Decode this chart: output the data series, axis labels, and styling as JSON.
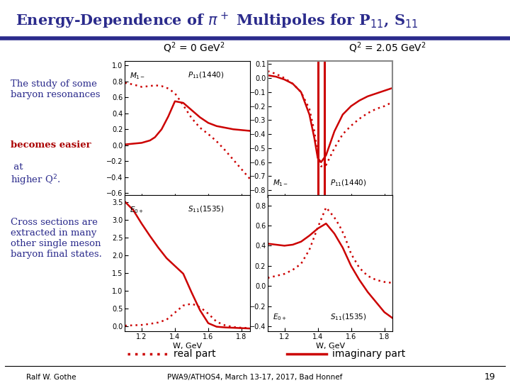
{
  "title": "Energy-Dependence of $\\pi^+$ Multipoles for P$_{11}$, S$_{11}$",
  "title_color": "#2B2B8C",
  "bg_color": "#FFFFFF",
  "subtitle_left": "Q$^2$ = 0 GeV$^2$",
  "subtitle_right": "Q$^2$ = 2.05 GeV$^2$",
  "footer_left": "Ralf W. Gothe",
  "footer_right": "PWA9/ATHOS4, March 13-17, 2017, Bad Honnef",
  "footer_page": "19",
  "curve_color": "#CC0000",
  "text1_normal": "The study of some\nbaryon resonances\n",
  "text1_red": "becomes easier",
  "text1_end": " at\nhigher Q$^2$.",
  "text2": "Cross sections are\nextracted in many\nother single meson\nbaryon final states.",
  "text_color": "#2B2B8C",
  "text_red_color": "#AA0000",
  "legend_real": "real part",
  "legend_imag": "imaginary part",
  "plots": [
    {
      "label_left": "$M_{1-}$",
      "label_right": "$P_{11}(1440)$",
      "label_pos": "top",
      "xlabel": "",
      "xlim": [
        1.1,
        1.85
      ],
      "ylim": [
        -0.65,
        1.05
      ],
      "yticks": [
        1.0,
        0.8,
        0.6,
        0.4,
        0.2,
        0.0,
        -0.2,
        -0.4,
        -0.6
      ],
      "xticks": [
        1.2,
        1.4,
        1.6,
        1.8
      ],
      "real_x": [
        1.1,
        1.15,
        1.2,
        1.25,
        1.28,
        1.32,
        1.36,
        1.4,
        1.45,
        1.5,
        1.55,
        1.6,
        1.65,
        1.7,
        1.75,
        1.8,
        1.85
      ],
      "real_y": [
        0.78,
        0.76,
        0.73,
        0.74,
        0.75,
        0.74,
        0.71,
        0.65,
        0.5,
        0.34,
        0.22,
        0.14,
        0.05,
        -0.06,
        -0.18,
        -0.3,
        -0.42
      ],
      "imag_x": [
        1.1,
        1.15,
        1.2,
        1.25,
        1.28,
        1.32,
        1.36,
        1.4,
        1.45,
        1.5,
        1.55,
        1.6,
        1.65,
        1.7,
        1.75,
        1.8,
        1.85
      ],
      "imag_y": [
        0.01,
        0.02,
        0.03,
        0.06,
        0.1,
        0.2,
        0.36,
        0.55,
        0.53,
        0.44,
        0.35,
        0.28,
        0.24,
        0.22,
        0.2,
        0.19,
        0.18
      ],
      "vlines": [],
      "gray_border": false
    },
    {
      "label_left": "$M_{1-}$",
      "label_right": "$P_{11}(1440)$",
      "label_pos": "bottom",
      "xlabel": "",
      "xlim": [
        1.1,
        1.85
      ],
      "ylim": [
        -0.85,
        0.12
      ],
      "yticks": [
        0.1,
        0.0,
        -0.1,
        -0.2,
        -0.3,
        -0.4,
        -0.5,
        -0.6,
        -0.7,
        -0.8
      ],
      "xticks": [
        1.2,
        1.4,
        1.6,
        1.8
      ],
      "real_x": [
        1.1,
        1.15,
        1.2,
        1.25,
        1.3,
        1.35,
        1.38,
        1.4,
        1.42,
        1.45,
        1.5,
        1.55,
        1.6,
        1.65,
        1.7,
        1.75,
        1.8,
        1.85
      ],
      "real_y": [
        0.05,
        0.03,
        0.0,
        -0.04,
        -0.1,
        -0.22,
        -0.38,
        -0.55,
        -0.63,
        -0.62,
        -0.5,
        -0.4,
        -0.34,
        -0.29,
        -0.25,
        -0.22,
        -0.2,
        -0.17
      ],
      "imag_x": [
        1.1,
        1.15,
        1.2,
        1.25,
        1.3,
        1.35,
        1.38,
        1.4,
        1.42,
        1.45,
        1.5,
        1.55,
        1.6,
        1.65,
        1.7,
        1.75,
        1.8,
        1.85
      ],
      "imag_y": [
        0.02,
        0.01,
        -0.01,
        -0.04,
        -0.1,
        -0.26,
        -0.43,
        -0.57,
        -0.6,
        -0.55,
        -0.38,
        -0.26,
        -0.2,
        -0.16,
        -0.13,
        -0.11,
        -0.09,
        -0.07
      ],
      "vlines": [
        1.4,
        1.44
      ],
      "gray_border": true
    },
    {
      "label_left": "$E_{0+}$",
      "label_right": "$S_{11}(1535)$",
      "label_pos": "top",
      "xlabel": "W, GeV",
      "xlim": [
        1.1,
        1.85
      ],
      "ylim": [
        -0.15,
        3.7
      ],
      "yticks": [
        3.5,
        3.0,
        2.5,
        2.0,
        1.5,
        1.0,
        0.5,
        0.0
      ],
      "xticks": [
        1.2,
        1.4,
        1.6,
        1.8
      ],
      "real_x": [
        1.1,
        1.15,
        1.2,
        1.25,
        1.3,
        1.35,
        1.4,
        1.45,
        1.5,
        1.53,
        1.56,
        1.6,
        1.65,
        1.7,
        1.75,
        1.8,
        1.85
      ],
      "real_y": [
        0.01,
        0.02,
        0.03,
        0.06,
        0.1,
        0.18,
        0.38,
        0.58,
        0.63,
        0.58,
        0.5,
        0.35,
        0.12,
        0.02,
        -0.03,
        -0.05,
        -0.06
      ],
      "imag_x": [
        1.1,
        1.15,
        1.2,
        1.25,
        1.3,
        1.35,
        1.4,
        1.45,
        1.5,
        1.55,
        1.6,
        1.65,
        1.7,
        1.75,
        1.8,
        1.85
      ],
      "imag_y": [
        3.52,
        3.28,
        2.9,
        2.55,
        2.22,
        1.92,
        1.7,
        1.48,
        0.95,
        0.45,
        0.08,
        -0.02,
        -0.04,
        -0.05,
        -0.06,
        -0.07
      ],
      "vlines": [],
      "gray_border": false
    },
    {
      "label_left": "$E_{0+}$",
      "label_right": "$S_{11}(1535)$",
      "label_pos": "bottom",
      "xlabel": "W, GeV",
      "xlim": [
        1.1,
        1.85
      ],
      "ylim": [
        -0.45,
        0.9
      ],
      "yticks": [
        0.8,
        0.6,
        0.4,
        0.2,
        0.0,
        -0.2,
        -0.4
      ],
      "xticks": [
        1.2,
        1.4,
        1.6,
        1.8
      ],
      "real_x": [
        1.1,
        1.15,
        1.2,
        1.25,
        1.3,
        1.35,
        1.4,
        1.45,
        1.5,
        1.53,
        1.56,
        1.6,
        1.65,
        1.7,
        1.75,
        1.8,
        1.85
      ],
      "real_y": [
        0.08,
        0.1,
        0.12,
        0.16,
        0.22,
        0.36,
        0.58,
        0.78,
        0.68,
        0.6,
        0.5,
        0.32,
        0.18,
        0.1,
        0.06,
        0.04,
        0.03
      ],
      "imag_x": [
        1.1,
        1.15,
        1.2,
        1.25,
        1.3,
        1.35,
        1.4,
        1.45,
        1.5,
        1.55,
        1.6,
        1.65,
        1.7,
        1.75,
        1.8,
        1.85
      ],
      "imag_y": [
        0.42,
        0.41,
        0.4,
        0.41,
        0.44,
        0.5,
        0.57,
        0.62,
        0.52,
        0.38,
        0.2,
        0.06,
        -0.06,
        -0.16,
        -0.26,
        -0.32
      ],
      "vlines": [],
      "gray_border": false
    }
  ]
}
